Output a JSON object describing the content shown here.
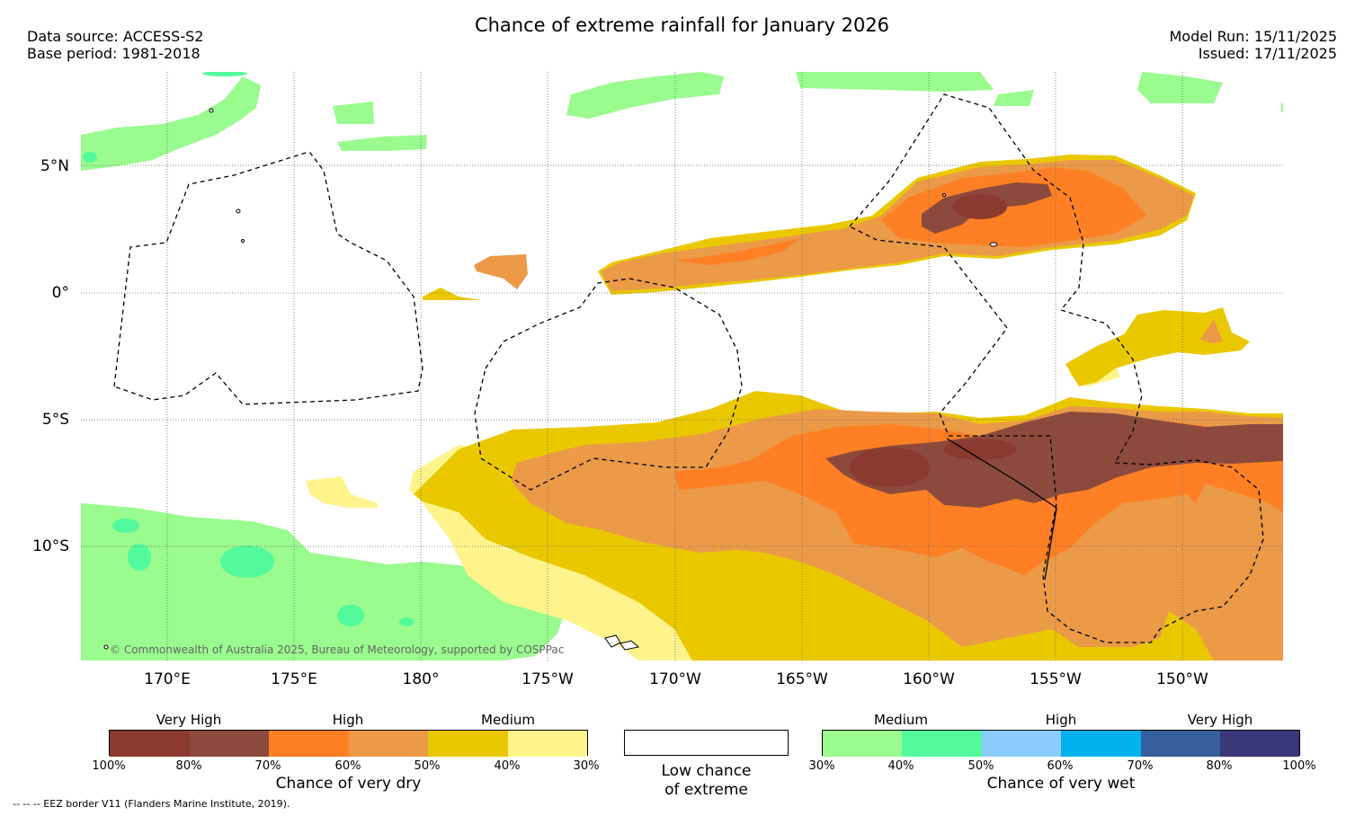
{
  "header": {
    "title": "Chance of extreme rainfall for January 2026",
    "data_source": "Data source: ACCESS-S2",
    "base_period": "Base period: 1981-2018",
    "model_run": "Model Run: 15/11/2025",
    "issued": "Issued: 17/11/2025"
  },
  "map": {
    "lat_labels": [
      "5°N",
      "0°",
      "5°S",
      "10°S"
    ],
    "lon_labels": [
      "170°E",
      "175°E",
      "180°",
      "175°W",
      "170°W",
      "165°W",
      "160°W",
      "155°W",
      "150°W"
    ],
    "copyright": "© Commonwealth of Australia 2025, Bureau of Meteorology, supported by COSPPac"
  },
  "colors": {
    "dry_very_high_1": "#8b3a30",
    "dry_very_high_2": "#8b4a3c",
    "dry_high_1": "#ff7f24",
    "dry_high_2": "#eb9a48",
    "dry_medium_1": "#eac800",
    "dry_medium_2": "#fff48c",
    "wet_medium_1": "#9afb8e",
    "wet_medium_2": "#52fa9c",
    "wet_high_1": "#8cccfa",
    "wet_high_2": "#00b2ec",
    "wet_very_high_1": "#36609c",
    "wet_very_high_2": "#3a3878"
  },
  "legend": {
    "dry": {
      "categories": [
        "Very High",
        "High",
        "Medium"
      ],
      "ticks": [
        "100%",
        "80%",
        "70%",
        "60%",
        "50%",
        "40%",
        "30%"
      ],
      "title": "Chance of very dry"
    },
    "low": {
      "title_line1": "Low chance",
      "title_line2": "of extreme"
    },
    "wet": {
      "categories": [
        "Medium",
        "High",
        "Very High"
      ],
      "ticks": [
        "30%",
        "40%",
        "50%",
        "60%",
        "70%",
        "80%",
        "100%"
      ],
      "title": "Chance of very wet"
    }
  },
  "footer": {
    "eez_note": "-- -- -- EEZ border V11 (Flanders Marine Institute, 2019)."
  }
}
